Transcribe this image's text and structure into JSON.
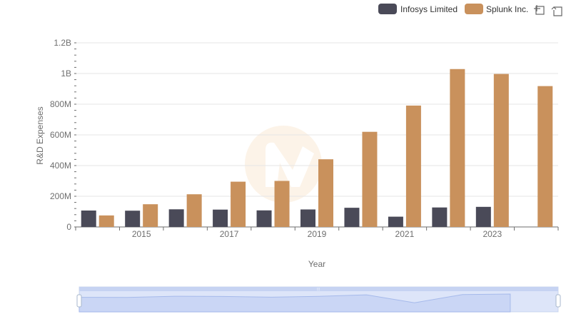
{
  "chart_data": {
    "type": "bar",
    "title": "",
    "xlabel": "Year",
    "ylabel": "R&D Expenses",
    "ylim": [
      0,
      1200000000
    ],
    "y_ticks": [
      {
        "value": 0,
        "label": "0"
      },
      {
        "value": 200000000,
        "label": "200M"
      },
      {
        "value": 400000000,
        "label": "400M"
      },
      {
        "value": 600000000,
        "label": "600M"
      },
      {
        "value": 800000000,
        "label": "800M"
      },
      {
        "value": 1000000000,
        "label": "1B"
      },
      {
        "value": 1200000000,
        "label": "1.2B"
      }
    ],
    "categories": [
      "2014",
      "2015",
      "2016",
      "2017",
      "2018",
      "2019",
      "2020",
      "2021",
      "2022",
      "2023",
      "2024"
    ],
    "x_tick_labels": [
      "2015",
      "2017",
      "2019",
      "2021",
      "2023"
    ],
    "legend_position": "top-right",
    "series": [
      {
        "name": "Infosys Limited",
        "color": "#4a4a58",
        "values": [
          107000000,
          106000000,
          115000000,
          113000000,
          108000000,
          114000000,
          125000000,
          67000000,
          127000000,
          131000000,
          null
        ]
      },
      {
        "name": "Splunk Inc.",
        "color": "#c9915c",
        "values": [
          75000000,
          148000000,
          213000000,
          295000000,
          300000000,
          441000000,
          620000000,
          791000000,
          1029000000,
          997000000,
          918000000
        ]
      }
    ]
  },
  "toolbar": {
    "zoom_icon": "zoom-select-icon",
    "reset_icon": "zoom-reset-icon"
  },
  "data_zoom": {
    "start_percent": 0,
    "end_percent": 100
  },
  "watermark_icon": "watermark-logo"
}
